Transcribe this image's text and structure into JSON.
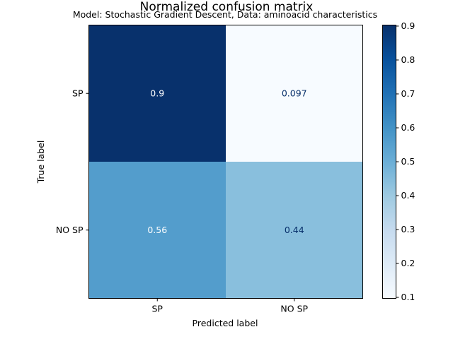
{
  "chart_data": {
    "type": "heatmap",
    "title": "Normalized confusion matrix",
    "subtitle": "Model: Stochastic Gradient Descent, Data: aminoacid characteristics",
    "xlabel": "Predicted label",
    "ylabel": "True label",
    "x_categories": [
      "SP",
      "NO SP"
    ],
    "y_categories": [
      "SP",
      "NO SP"
    ],
    "values": [
      [
        0.9,
        0.097
      ],
      [
        0.56,
        0.44
      ]
    ],
    "value_labels": [
      [
        "0.9",
        "0.097"
      ],
      [
        "0.56",
        "0.44"
      ]
    ],
    "colormap": "Blues",
    "colorbar": {
      "range": [
        0.097,
        0.903
      ],
      "ticks": [
        0.1,
        0.2,
        0.3,
        0.4,
        0.5,
        0.6,
        0.7,
        0.8,
        0.9
      ],
      "tick_labels": [
        "0.1",
        "0.2",
        "0.3",
        "0.4",
        "0.5",
        "0.6",
        "0.7",
        "0.8",
        "0.9"
      ]
    }
  }
}
